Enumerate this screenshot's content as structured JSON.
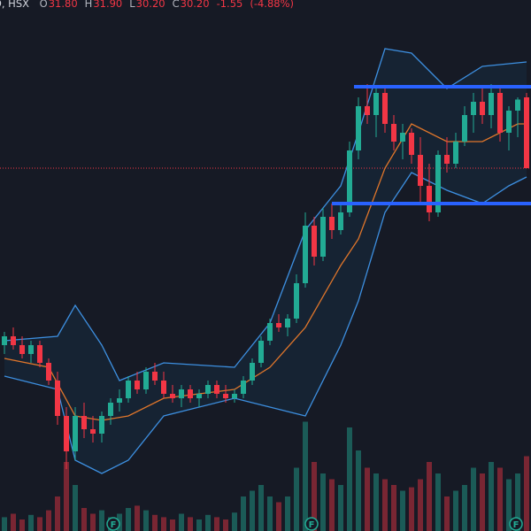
{
  "header": {
    "symbol": "D, HSX",
    "fields": [
      {
        "name": "O",
        "value": {
          "value": 31.8,
          "label": "31.80"
        }
      },
      {
        "name": "H",
        "value": {
          "value": 31.9,
          "label": "31.90"
        }
      },
      {
        "name": "L",
        "value": {
          "value": 30.2,
          "label": "30.20"
        }
      },
      {
        "name": "C",
        "value": {
          "value": 30.2,
          "label": "30.20"
        }
      }
    ],
    "change": {
      "value": -1.55,
      "label": "-1.55"
    },
    "change_percent": {
      "value": -4.88,
      "label": "(-4.88%)"
    }
  },
  "chart_data": {
    "type": "candlestick",
    "xlim": [
      -0.5,
      59.5
    ],
    "ylim": [
      22.0,
      33.76
    ],
    "vlim": [
      0,
      100
    ],
    "up_color": "#22ab94",
    "down_color": "#f23645",
    "ohlc": [
      [
        26.2,
        26.5,
        26.0,
        26.4
      ],
      [
        26.4,
        26.6,
        26.1,
        26.2
      ],
      [
        26.2,
        26.4,
        25.9,
        26.0
      ],
      [
        26.0,
        26.3,
        25.8,
        26.2
      ],
      [
        26.2,
        26.3,
        25.7,
        25.8
      ],
      [
        25.8,
        25.9,
        25.3,
        25.4
      ],
      [
        25.4,
        25.6,
        24.4,
        24.6
      ],
      [
        24.6,
        24.8,
        23.4,
        23.8
      ],
      [
        23.8,
        24.8,
        23.6,
        24.6
      ],
      [
        24.6,
        24.9,
        24.1,
        24.3
      ],
      [
        24.3,
        24.6,
        24.0,
        24.2
      ],
      [
        24.2,
        24.7,
        24.0,
        24.6
      ],
      [
        24.6,
        25.0,
        24.4,
        24.9
      ],
      [
        24.9,
        25.2,
        24.7,
        25.0
      ],
      [
        25.0,
        25.5,
        24.9,
        25.4
      ],
      [
        25.4,
        25.6,
        25.1,
        25.2
      ],
      [
        25.2,
        25.7,
        25.1,
        25.6
      ],
      [
        25.6,
        25.8,
        25.3,
        25.4
      ],
      [
        25.4,
        25.6,
        25.0,
        25.1
      ],
      [
        25.1,
        25.3,
        24.9,
        25.0
      ],
      [
        25.0,
        25.3,
        24.8,
        25.2
      ],
      [
        25.2,
        25.3,
        24.9,
        25.0
      ],
      [
        25.0,
        25.2,
        24.8,
        25.1
      ],
      [
        25.1,
        25.4,
        25.0,
        25.3
      ],
      [
        25.3,
        25.4,
        25.0,
        25.1
      ],
      [
        25.1,
        25.3,
        24.9,
        25.0
      ],
      [
        25.0,
        25.2,
        24.9,
        25.1
      ],
      [
        25.1,
        25.5,
        25.0,
        25.4
      ],
      [
        25.4,
        25.9,
        25.3,
        25.8
      ],
      [
        25.8,
        26.4,
        25.7,
        26.3
      ],
      [
        26.3,
        26.8,
        26.2,
        26.7
      ],
      [
        26.7,
        26.9,
        26.5,
        26.6
      ],
      [
        26.6,
        26.9,
        26.4,
        26.8
      ],
      [
        26.8,
        27.8,
        26.7,
        27.6
      ],
      [
        27.6,
        29.2,
        27.5,
        28.9
      ],
      [
        28.9,
        29.1,
        28.0,
        28.2
      ],
      [
        28.2,
        29.3,
        28.1,
        29.1
      ],
      [
        29.1,
        29.4,
        28.6,
        28.8
      ],
      [
        28.8,
        29.4,
        28.7,
        29.2
      ],
      [
        29.2,
        30.8,
        29.1,
        30.6
      ],
      [
        30.6,
        31.8,
        30.4,
        31.6
      ],
      [
        31.6,
        32.1,
        31.2,
        31.4
      ],
      [
        31.4,
        32.0,
        30.9,
        31.9
      ],
      [
        31.9,
        32.0,
        31.0,
        31.2
      ],
      [
        31.2,
        31.4,
        30.6,
        30.8
      ],
      [
        30.8,
        31.2,
        30.4,
        31.0
      ],
      [
        31.0,
        31.1,
        30.3,
        30.5
      ],
      [
        30.5,
        30.9,
        29.4,
        29.8
      ],
      [
        29.8,
        30.3,
        29.0,
        29.2
      ],
      [
        29.2,
        30.6,
        29.1,
        30.5
      ],
      [
        30.5,
        30.9,
        30.1,
        30.3
      ],
      [
        30.3,
        31.0,
        30.2,
        30.8
      ],
      [
        30.8,
        31.6,
        30.7,
        31.4
      ],
      [
        31.4,
        31.9,
        31.0,
        31.7
      ],
      [
        31.7,
        32.0,
        31.2,
        31.4
      ],
      [
        31.4,
        32.1,
        31.1,
        31.9
      ],
      [
        31.9,
        32.0,
        30.8,
        31.0
      ],
      [
        31.0,
        31.6,
        30.6,
        31.5
      ],
      [
        31.5,
        31.8,
        30.9,
        31.75
      ],
      [
        31.8,
        31.9,
        30.2,
        30.2
      ]
    ],
    "volume": [
      12,
      15,
      10,
      14,
      12,
      18,
      30,
      60,
      40,
      20,
      15,
      18,
      12,
      15,
      20,
      22,
      18,
      14,
      12,
      10,
      15,
      12,
      10,
      14,
      12,
      10,
      16,
      30,
      35,
      40,
      30,
      25,
      30,
      55,
      95,
      60,
      50,
      45,
      40,
      90,
      70,
      55,
      50,
      45,
      40,
      35,
      38,
      45,
      60,
      50,
      30,
      35,
      40,
      55,
      50,
      60,
      55,
      45,
      50,
      65
    ],
    "bands": [
      {
        "role": "upper",
        "color": "#3d8fe0",
        "x": [
          0,
          6,
          8,
          11,
          13,
          18,
          26,
          30,
          34,
          38,
          40,
          43,
          46,
          50,
          54,
          59
        ],
        "values": [
          26.3,
          26.4,
          27.1,
          26.2,
          25.4,
          25.8,
          25.7,
          26.7,
          28.8,
          29.8,
          31.0,
          32.9,
          32.8,
          32.0,
          32.5,
          32.6
        ]
      },
      {
        "role": "lower",
        "color": "#3d8fe0",
        "x": [
          0,
          6,
          8,
          11,
          14,
          18,
          26,
          30,
          34,
          38,
          40,
          43,
          46,
          50,
          54,
          57,
          59
        ],
        "values": [
          25.5,
          25.2,
          23.6,
          23.3,
          23.6,
          24.6,
          25.0,
          24.8,
          24.6,
          26.2,
          27.2,
          29.2,
          30.1,
          29.7,
          29.4,
          29.8,
          30.0
        ]
      },
      {
        "role": "basis",
        "color": "#e0762b",
        "x": [
          0,
          5,
          8,
          11,
          14,
          18,
          26,
          30,
          34,
          38,
          40,
          43,
          46,
          50,
          54,
          58,
          59
        ],
        "values": [
          25.9,
          25.7,
          24.6,
          24.5,
          24.6,
          25.0,
          25.2,
          25.7,
          26.6,
          28.0,
          28.6,
          30.2,
          31.2,
          30.8,
          30.8,
          31.2,
          31.2
        ]
      }
    ],
    "levels": [
      {
        "value": 32.04,
        "start": 39.5,
        "color": "#2962ff"
      },
      {
        "value": 29.4,
        "start": 37.0,
        "color": "#2962ff"
      }
    ],
    "events": [
      {
        "label": "F",
        "x": 12.3
      },
      {
        "label": "F",
        "x": 34.7
      },
      {
        "label": "F",
        "x": 57.8
      }
    ]
  }
}
